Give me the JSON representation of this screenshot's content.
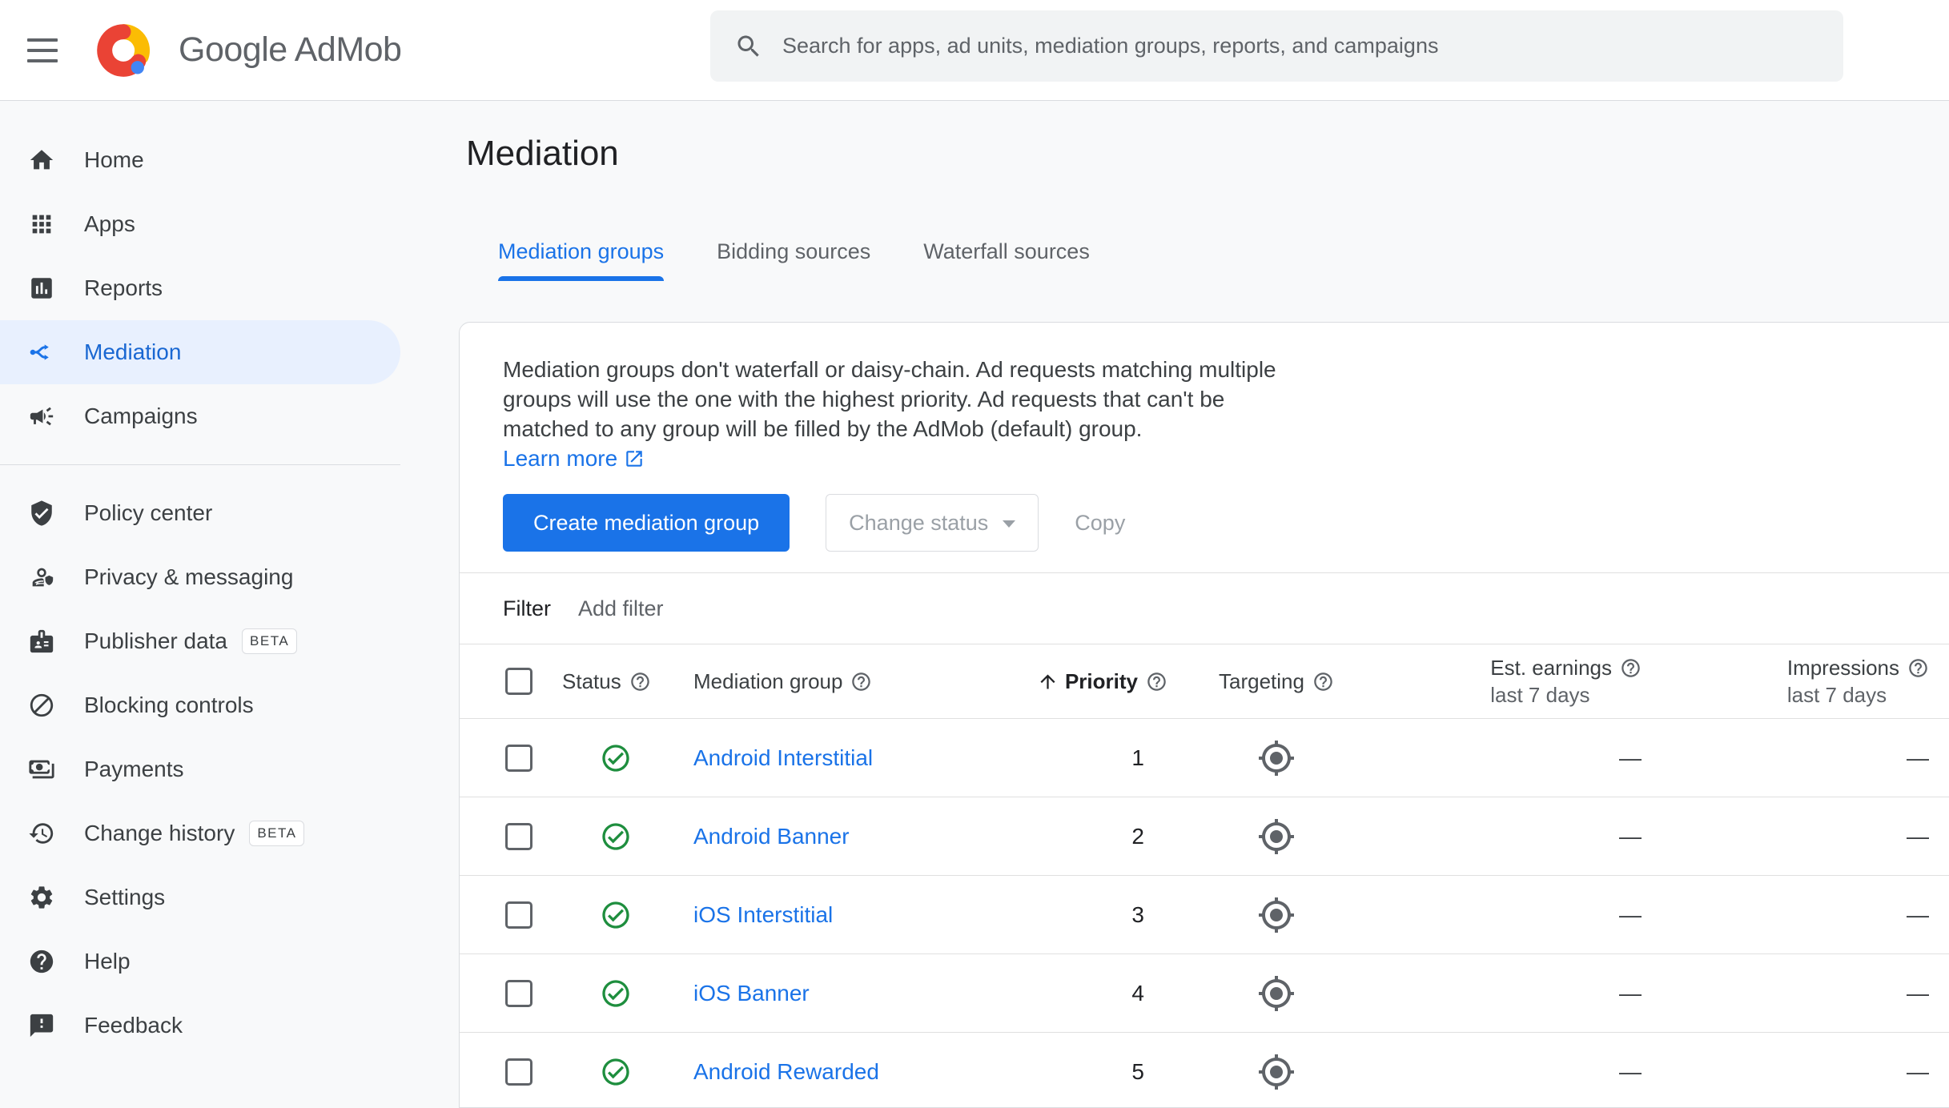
{
  "topbar": {
    "brand": "Google AdMob",
    "search_placeholder": "Search for apps, ad units, mediation groups, reports, and campaigns"
  },
  "sidebar": {
    "primary": [
      {
        "label": "Home",
        "icon": "home",
        "selected": false
      },
      {
        "label": "Apps",
        "icon": "apps",
        "selected": false
      },
      {
        "label": "Reports",
        "icon": "reports",
        "selected": false
      },
      {
        "label": "Mediation",
        "icon": "mediation",
        "selected": true
      },
      {
        "label": "Campaigns",
        "icon": "campaign",
        "selected": false
      }
    ],
    "secondary": [
      {
        "label": "Policy center",
        "icon": "policy"
      },
      {
        "label": "Privacy & messaging",
        "icon": "privacy"
      },
      {
        "label": "Publisher data",
        "icon": "publisher",
        "badge": "BETA"
      },
      {
        "label": "Blocking controls",
        "icon": "block"
      },
      {
        "label": "Payments",
        "icon": "payments"
      },
      {
        "label": "Change history",
        "icon": "history",
        "badge": "BETA"
      },
      {
        "label": "Settings",
        "icon": "settings"
      },
      {
        "label": "Help",
        "icon": "help"
      },
      {
        "label": "Feedback",
        "icon": "feedback"
      }
    ]
  },
  "main": {
    "title": "Mediation",
    "tabs": [
      {
        "label": "Mediation groups",
        "active": true
      },
      {
        "label": "Bidding sources",
        "active": false
      },
      {
        "label": "Waterfall sources",
        "active": false
      }
    ],
    "info_text": "Mediation groups don't waterfall or daisy-chain. Ad requests matching multiple groups will use the one with the highest priority. Ad requests that can't be matched to any group will be filled by the AdMob (default) group.",
    "learn_more": "Learn more",
    "buttons": {
      "create": "Create mediation group",
      "change_status": "Change status",
      "copy": "Copy"
    },
    "filter": {
      "label": "Filter",
      "add_filter": "Add filter"
    },
    "table": {
      "headers": {
        "status": "Status",
        "group": "Mediation group",
        "priority": "Priority",
        "targeting": "Targeting",
        "earnings": "Est. earnings",
        "impressions": "Impressions",
        "period": "last 7 days"
      },
      "rows": [
        {
          "name": "Android Interstitial",
          "status": "active",
          "priority": "1",
          "earnings": "—",
          "impressions": "—"
        },
        {
          "name": "Android Banner",
          "status": "active",
          "priority": "2",
          "earnings": "—",
          "impressions": "—"
        },
        {
          "name": "iOS Interstitial",
          "status": "active",
          "priority": "3",
          "earnings": "—",
          "impressions": "—"
        },
        {
          "name": "iOS Banner",
          "status": "active",
          "priority": "4",
          "earnings": "—",
          "impressions": "—"
        },
        {
          "name": "Android Rewarded",
          "status": "active",
          "priority": "5",
          "earnings": "—",
          "impressions": "—"
        }
      ]
    }
  },
  "colors": {
    "accent_blue": "#1a73e8",
    "selected_item_bg": "#e8f0fe",
    "selected_item_text": "#1967d2",
    "status_green": "#1e8e3e",
    "page_bg": "#f8f9fa",
    "search_bg": "#f1f3f4",
    "divider": "#dadce0",
    "logo_red": "#ea4335",
    "logo_yellow": "#fbbc04",
    "logo_blue": "#4285f4"
  }
}
